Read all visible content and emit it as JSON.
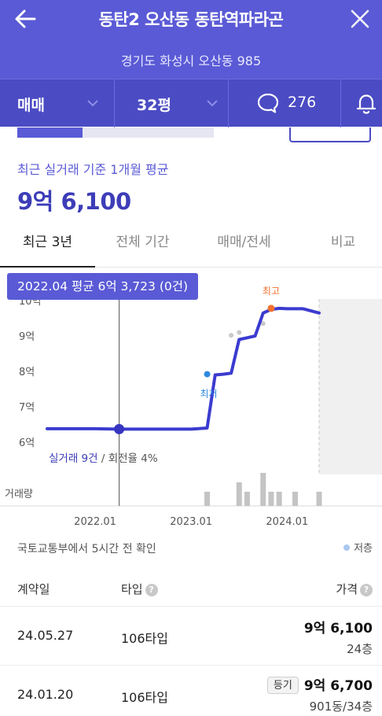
{
  "header": {
    "title": "동탄2 오산동 동탄역파라곤",
    "address": "경기도 화성시 오산동 985",
    "back_icon": "arrow-left-icon",
    "close_icon": "close-icon"
  },
  "filters": {
    "deal_type": "매매",
    "size": "32평",
    "comment_count": "276",
    "comment_icon": "chat-bubble-icon",
    "alarm_icon": "bell-icon"
  },
  "summary": {
    "progress": 0.33,
    "avg_label": "최근 실거래 기준 1개월 평균",
    "avg_price": "9억 6,100"
  },
  "tabs": [
    "최근 3년",
    "전체 기간",
    "매매/전세",
    "비교"
  ],
  "chart": {
    "tooltip": "2022.04 평균 6억 3,723 (0건)",
    "stats_primary": "실거래 9건",
    "stats_secondary": "/ 회전율 4%",
    "volume_label": "거래량",
    "max_label": "최고",
    "min_label": "최저"
  },
  "chart_data": {
    "type": "line",
    "y_ticks": [
      "10억",
      "9억",
      "8억",
      "7억",
      "6억"
    ],
    "x_ticks": [
      "2022.01",
      "2023.01",
      "2024.01"
    ],
    "ylim": [
      6,
      10
    ],
    "series": [
      {
        "values_desc": "monthly average price (억)",
        "x": [
          "2021.07",
          "2022.01",
          "2022.04",
          "2022.07",
          "2022.10",
          "2023.01",
          "2023.03",
          "2023.04",
          "2023.05",
          "2023.06",
          "2023.07",
          "2023.08",
          "2023.09",
          "2023.10",
          "2023.11",
          "2023.12",
          "2024.01",
          "2024.03",
          "2024.05"
        ],
        "y": [
          6.38,
          6.38,
          6.37,
          6.37,
          6.37,
          6.37,
          6.4,
          7.9,
          7.92,
          7.95,
          8.9,
          8.95,
          9.0,
          9.65,
          9.75,
          9.78,
          9.77,
          9.77,
          9.65
        ]
      }
    ],
    "scatter_points": [
      {
        "x": "2023.06",
        "y": 9.02
      },
      {
        "x": "2023.07",
        "y": 9.1
      },
      {
        "x": "2023.10",
        "y": 9.35
      }
    ],
    "max_point": {
      "x": "2023.11",
      "y": 9.78
    },
    "min_point": {
      "x": "2023.03",
      "y": 7.92
    },
    "volume": [
      {
        "x": "2023.03",
        "count": 1
      },
      {
        "x": "2023.07",
        "count": 2
      },
      {
        "x": "2023.08",
        "count": 1
      },
      {
        "x": "2023.10",
        "count": 3
      },
      {
        "x": "2023.11",
        "count": 1
      },
      {
        "x": "2023.12",
        "count": 1
      },
      {
        "x": "2024.02",
        "count": 1
      },
      {
        "x": "2024.05",
        "count": 1
      }
    ]
  },
  "list": {
    "source": "국토교통부에서 5시간 전 확인",
    "legend": "저층",
    "columns": {
      "date": "계약일",
      "type": "타입",
      "price": "가격"
    },
    "help_icon": "question-circle-icon",
    "rows": [
      {
        "date": "24.05.27",
        "type": "106타입",
        "price": "9억 6,100",
        "floor": "24층",
        "badge": ""
      },
      {
        "date": "24.01.20",
        "type": "106타입",
        "price": "9억 6,700",
        "floor": "901동/34층",
        "badge": "등기"
      }
    ]
  }
}
